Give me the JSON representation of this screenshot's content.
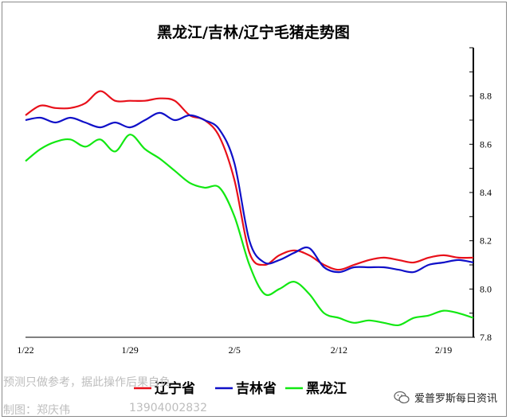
{
  "watermarks": {
    "line1": "预测只做参考，据此操作后果自负",
    "author": "制图：郑庆伟",
    "phone": "13904002832"
  },
  "brand": {
    "label": "爱普罗斯每日资讯",
    "icon": "wechat-icon"
  },
  "chart_data": {
    "type": "line",
    "title": "黑龙江/吉林/辽宁毛猪走势图",
    "xlabel": "",
    "ylabel": "",
    "x_ticks": [
      "1/22",
      "1/29",
      "2/5",
      "2/12",
      "2/19"
    ],
    "y_ticks": [
      "7.8",
      "8.0",
      "8.2",
      "8.4",
      "8.6",
      "8.8"
    ],
    "ylim": [
      7.8,
      9.0
    ],
    "grid": false,
    "legend_position": "bottom",
    "x": [
      "1/22",
      "1/23",
      "1/24",
      "1/25",
      "1/26",
      "1/27",
      "1/28",
      "1/29",
      "1/30",
      "1/31",
      "2/1",
      "2/2",
      "2/3",
      "2/4",
      "2/5",
      "2/6",
      "2/7",
      "2/8",
      "2/9",
      "2/10",
      "2/11",
      "2/12",
      "2/13",
      "2/14",
      "2/15",
      "2/16",
      "2/17",
      "2/18",
      "2/19",
      "2/20",
      "2/21"
    ],
    "series": [
      {
        "name": "辽宁省",
        "color": "#e8101a",
        "values": [
          8.72,
          8.76,
          8.75,
          8.75,
          8.77,
          8.82,
          8.78,
          8.78,
          8.78,
          8.79,
          8.78,
          8.72,
          8.7,
          8.63,
          8.45,
          8.15,
          8.1,
          8.14,
          8.16,
          8.14,
          8.1,
          8.08,
          8.1,
          8.12,
          8.13,
          8.12,
          8.11,
          8.13,
          8.14,
          8.13,
          8.13
        ]
      },
      {
        "name": "吉林省",
        "color": "#1010c8",
        "values": [
          8.7,
          8.71,
          8.69,
          8.71,
          8.69,
          8.67,
          8.69,
          8.67,
          8.7,
          8.73,
          8.7,
          8.72,
          8.7,
          8.66,
          8.52,
          8.2,
          8.11,
          8.12,
          8.15,
          8.17,
          8.09,
          8.07,
          8.09,
          8.09,
          8.09,
          8.08,
          8.07,
          8.1,
          8.11,
          8.12,
          8.11
        ]
      },
      {
        "name": "黑龙江",
        "color": "#12e812",
        "values": [
          8.53,
          8.58,
          8.61,
          8.62,
          8.59,
          8.62,
          8.57,
          8.64,
          8.58,
          8.54,
          8.49,
          8.44,
          8.42,
          8.42,
          8.3,
          8.1,
          7.98,
          8.0,
          8.03,
          7.98,
          7.9,
          7.88,
          7.86,
          7.87,
          7.86,
          7.85,
          7.88,
          7.89,
          7.91,
          7.9,
          7.88
        ]
      }
    ]
  }
}
